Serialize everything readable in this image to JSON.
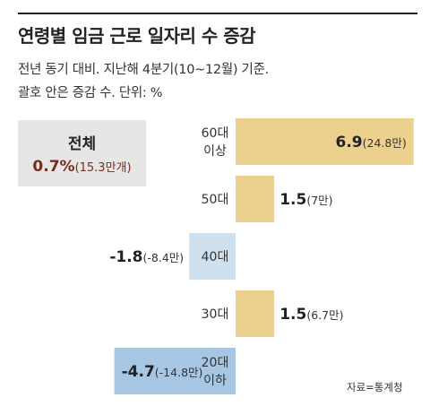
{
  "header": {
    "title": "연령별 임금 근로 일자리 수 증감",
    "subtitle_line1": "전년 동기 대비. 지난해 4분기(10~12월) 기준.",
    "subtitle_line2": "괄호 안은 증감 수. 단위: %"
  },
  "total": {
    "label": "전체",
    "value": "0.7%",
    "count": "(15.3만개)"
  },
  "source": "자료=통계청",
  "colors": {
    "positive": "#ecd08e",
    "negative_small": "#cfe0ef",
    "negative_large": "#a6c6e3",
    "total_box": "#e6e6e6",
    "total_value": "#7a2c1c"
  },
  "chart_data": {
    "type": "bar",
    "orientation": "horizontal",
    "categories": [
      [
        "60대",
        "이상"
      ],
      [
        "50대"
      ],
      [
        "40대"
      ],
      [
        "30대"
      ],
      [
        "20대",
        "이하"
      ]
    ],
    "values": [
      6.9,
      1.5,
      -1.8,
      1.5,
      -4.7
    ],
    "value_labels": [
      "6.9",
      "1.5",
      "-1.8",
      "1.5",
      "-4.7"
    ],
    "change_labels": [
      "(24.8만)",
      "(7만)",
      "(-8.4만)",
      "(6.7만)",
      "(-14.8만)"
    ],
    "unit": "%"
  }
}
